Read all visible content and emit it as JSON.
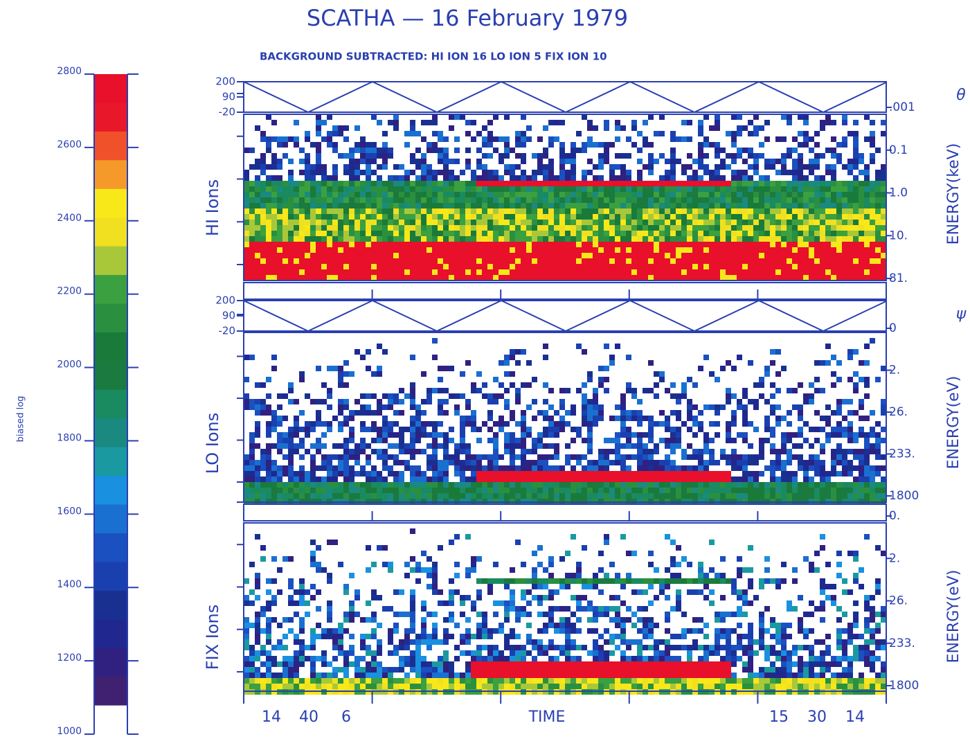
{
  "title": "SCATHA — 16 February 1979",
  "subtitle": "BACKGROUND SUBTRACTED:  HI ION 16   LO ION  5   FIX ION 10",
  "colorbar": {
    "label": "biased log",
    "range": [
      1000,
      2800
    ],
    "ticks": [
      2800,
      2600,
      2400,
      2200,
      2000,
      1800,
      1600,
      1400,
      1200,
      1000
    ],
    "colors": [
      "#e8102a",
      "#e8182a",
      "#f0502a",
      "#f59a2a",
      "#f8e81a",
      "#f0e020",
      "#a8c83a",
      "#3aa040",
      "#2a9040",
      "#1a7a3a",
      "#1a7a40",
      "#1a8a60",
      "#1a8a80",
      "#1a9aa0",
      "#1a90e0",
      "#1a70d0",
      "#1a50c0",
      "#1a40b0",
      "#1a3090",
      "#202890",
      "#302080",
      "#402070",
      "#ffffff"
    ]
  },
  "panels": [
    {
      "name": "HI Ions",
      "angle_symbol": "θ",
      "angle_range": [
        -20,
        200
      ],
      "angle_ticks": [
        200,
        90,
        -20
      ],
      "energy_label": "ENERGY(keV)",
      "energy_ticks": [
        ".001",
        "0.1",
        "1.0",
        "10.",
        "81."
      ]
    },
    {
      "name": "LO Ions",
      "angle_symbol": "ψ",
      "angle_range": [
        -20,
        200
      ],
      "angle_ticks": [
        200,
        90,
        -20
      ],
      "energy_label": "ENERGY(eV)",
      "energy_ticks": [
        "0",
        "2.",
        "26.",
        "233.",
        "1800"
      ]
    },
    {
      "name": "FIX Ions",
      "energy_label": "ENERGY(eV)",
      "energy_ticks": [
        "0.",
        "2.",
        "26.",
        "233.",
        "1800"
      ]
    }
  ],
  "x_axis": {
    "label": "TIME",
    "left_labels": [
      "14",
      "40",
      "6"
    ],
    "right_labels": [
      "15",
      "30",
      "14"
    ]
  }
}
